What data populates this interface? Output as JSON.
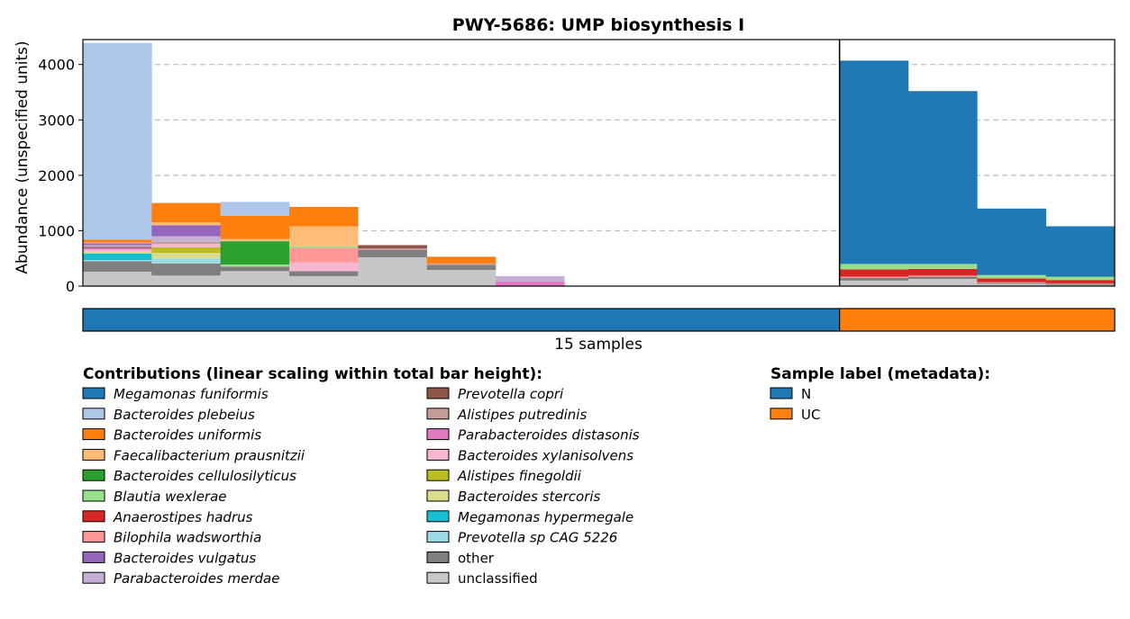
{
  "chart_data": {
    "type": "bar",
    "stacked": true,
    "title": "PWY-5686: UMP biosynthesis I",
    "ylabel": "Abundance (unspecified units)",
    "xlabel": "15 samples",
    "ylim": [
      0,
      4450
    ],
    "yticks": [
      0,
      1000,
      2000,
      3000,
      4000
    ],
    "grid": "y dashed",
    "group_divider_after_sample": 11,
    "legend_title": "Contributions (linear scaling within total bar height):",
    "meta_legend_title": "Sample label (metadata):",
    "sample_labels": [
      "N",
      "N",
      "N",
      "N",
      "N",
      "N",
      "N",
      "N",
      "N",
      "N",
      "N",
      "UC",
      "UC",
      "UC",
      "UC"
    ],
    "label_colors": {
      "N": "#1f77b4",
      "UC": "#ff7f0e"
    },
    "label_legend": [
      {
        "label": "N",
        "color": "#1f77b4"
      },
      {
        "label": "UC",
        "color": "#ff7f0e"
      }
    ],
    "series": [
      {
        "name": "Megamonas funiformis",
        "color": "#1f77b4",
        "values": [
          0,
          0,
          0,
          0,
          0,
          0,
          0,
          0,
          0,
          0,
          0,
          3670,
          3120,
          1200,
          910
        ]
      },
      {
        "name": "Bacteroides plebeius",
        "color": "#aec7e8",
        "values": [
          3550,
          0,
          250,
          0,
          0,
          0,
          0,
          0,
          0,
          0,
          0,
          0,
          0,
          0,
          0
        ]
      },
      {
        "name": "Bacteroides uniformis",
        "color": "#ff7f0e",
        "values": [
          50,
          350,
          420,
          350,
          0,
          120,
          0,
          0,
          0,
          0,
          0,
          0,
          0,
          0,
          0
        ]
      },
      {
        "name": "Faecalibacterium prausnitzii",
        "color": "#ffbb78",
        "values": [
          0,
          50,
          40,
          360,
          0,
          0,
          0,
          0,
          0,
          0,
          0,
          0,
          0,
          0,
          0
        ]
      },
      {
        "name": "Bacteroides cellulosilyticus",
        "color": "#2ca02c",
        "values": [
          0,
          0,
          420,
          0,
          0,
          0,
          0,
          0,
          0,
          0,
          0,
          0,
          0,
          0,
          0
        ]
      },
      {
        "name": "Blautia wexlerae",
        "color": "#98df8a",
        "values": [
          0,
          0,
          40,
          30,
          0,
          0,
          0,
          0,
          0,
          0,
          0,
          100,
          90,
          60,
          60
        ]
      },
      {
        "name": "Anaerostipes hadrus",
        "color": "#d62728",
        "values": [
          0,
          0,
          0,
          0,
          0,
          0,
          0,
          0,
          0,
          0,
          0,
          130,
          120,
          70,
          60
        ]
      },
      {
        "name": "Bilophila wadsworthia",
        "color": "#ff9896",
        "values": [
          20,
          0,
          0,
          260,
          0,
          0,
          0,
          0,
          0,
          0,
          0,
          20,
          20,
          10,
          10
        ]
      },
      {
        "name": "Bacteroides vulgatus",
        "color": "#9467bd",
        "values": [
          30,
          200,
          0,
          0,
          0,
          0,
          0,
          0,
          0,
          0,
          0,
          0,
          0,
          0,
          0
        ]
      },
      {
        "name": "Parabacteroides merdae",
        "color": "#c5b0d5",
        "values": [
          30,
          100,
          0,
          0,
          0,
          0,
          100,
          0,
          0,
          0,
          0,
          0,
          0,
          0,
          0
        ]
      },
      {
        "name": "Prevotella copri",
        "color": "#8c564b",
        "values": [
          20,
          0,
          0,
          0,
          60,
          0,
          0,
          0,
          0,
          0,
          0,
          0,
          0,
          0,
          0
        ]
      },
      {
        "name": "Alistipes putredinis",
        "color": "#c49c94",
        "values": [
          0,
          40,
          0,
          0,
          30,
          30,
          0,
          0,
          0,
          0,
          0,
          0,
          0,
          0,
          0
        ]
      },
      {
        "name": "Parabacteroides distasonis",
        "color": "#e377c2",
        "values": [
          30,
          0,
          0,
          0,
          0,
          0,
          80,
          0,
          0,
          0,
          0,
          0,
          0,
          0,
          0
        ]
      },
      {
        "name": "Bacteroides xylanisolvens",
        "color": "#f7b6d2",
        "values": [
          40,
          60,
          0,
          160,
          0,
          0,
          0,
          0,
          0,
          0,
          0,
          0,
          0,
          0,
          0
        ]
      },
      {
        "name": "Alistipes finegoldii",
        "color": "#bcbd22",
        "values": [
          0,
          100,
          0,
          0,
          0,
          0,
          0,
          0,
          0,
          0,
          0,
          0,
          0,
          0,
          0
        ]
      },
      {
        "name": "Bacteroides stercoris",
        "color": "#dbdb8d",
        "values": [
          30,
          100,
          0,
          0,
          0,
          0,
          0,
          0,
          0,
          0,
          0,
          0,
          0,
          0,
          0
        ]
      },
      {
        "name": "Megamonas hypermegale",
        "color": "#17becf",
        "values": [
          120,
          0,
          0,
          0,
          0,
          0,
          0,
          0,
          0,
          0,
          0,
          0,
          0,
          0,
          0
        ]
      },
      {
        "name": "Prevotella sp CAG 5226",
        "color": "#9edae5",
        "values": [
          20,
          90,
          0,
          0,
          0,
          0,
          0,
          0,
          0,
          0,
          0,
          0,
          0,
          0,
          0
        ]
      },
      {
        "name": "other",
        "color": "#7f7f7f",
        "values": [
          190,
          220,
          80,
          90,
          130,
          90,
          0,
          0,
          0,
          0,
          0,
          50,
          40,
          20,
          20
        ]
      },
      {
        "name": "unclassified",
        "color": "#c7c7c7",
        "values": [
          260,
          190,
          270,
          180,
          520,
          290,
          0,
          0,
          0,
          0,
          0,
          100,
          130,
          40,
          20
        ]
      }
    ]
  }
}
